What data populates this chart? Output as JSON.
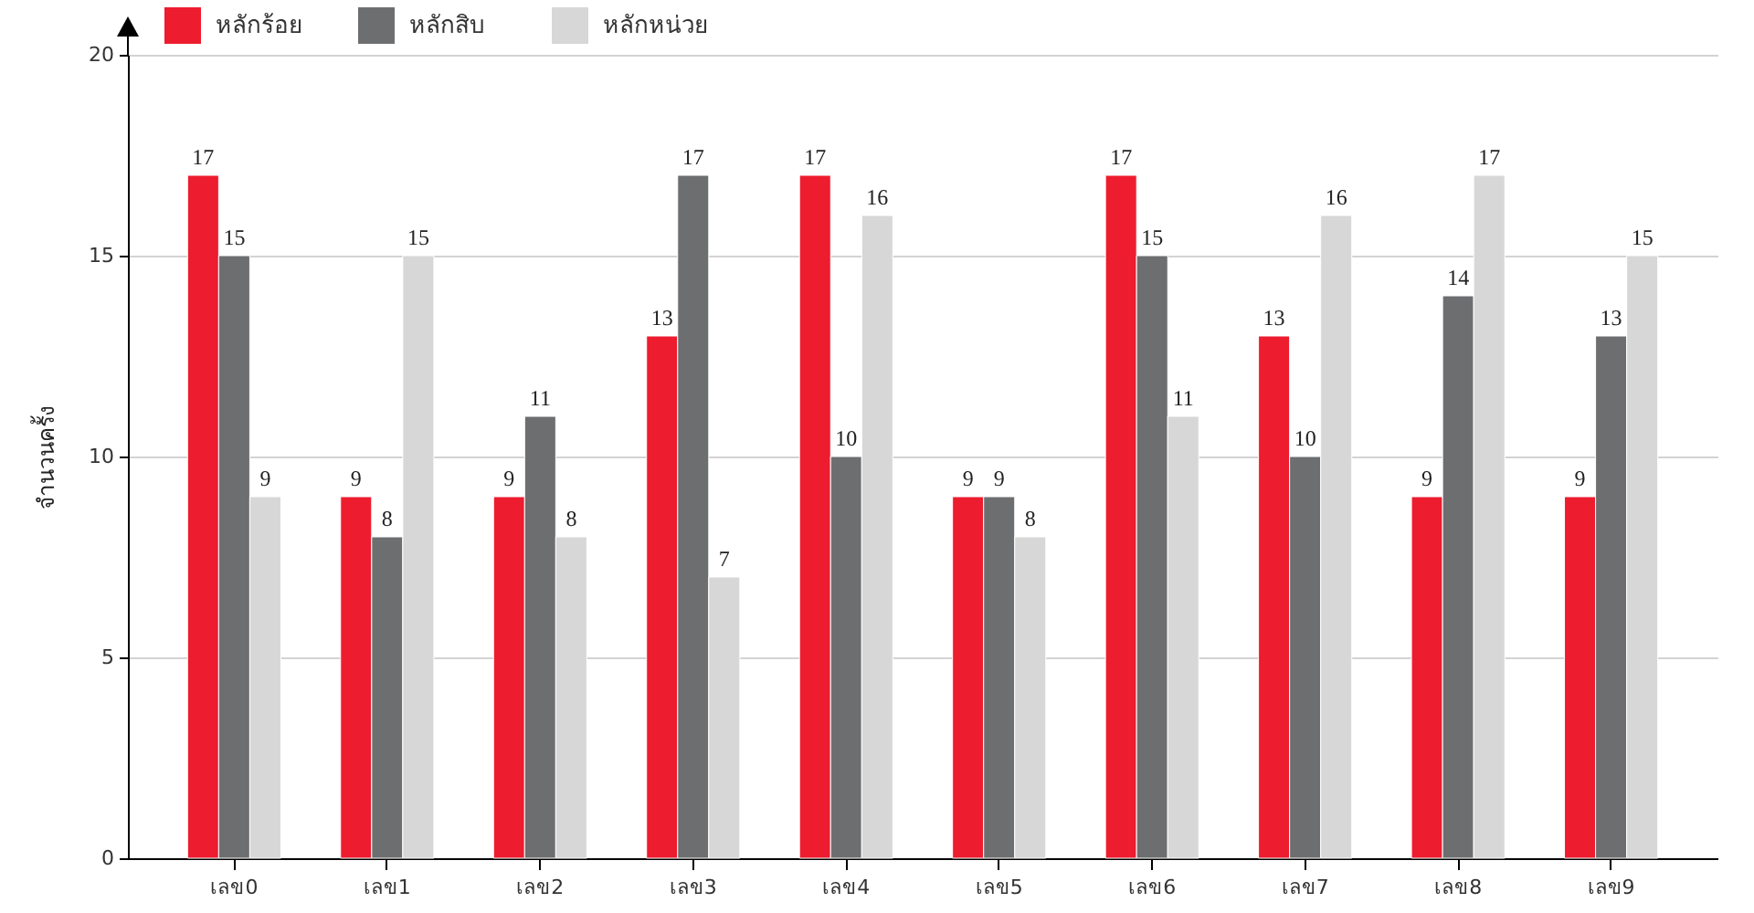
{
  "chart_data": {
    "type": "bar",
    "ylabel": "จำนวนครั้ง",
    "categories": [
      "เลข0",
      "เลข1",
      "เลข2",
      "เลข3",
      "เลข4",
      "เลข5",
      "เลข6",
      "เลข7",
      "เลข8",
      "เลข9"
    ],
    "series": [
      {
        "name": "หลักร้อย",
        "color": "#ed1c2e",
        "values": [
          17,
          9,
          9,
          13,
          17,
          9,
          17,
          13,
          9,
          9
        ]
      },
      {
        "name": "หลักสิบ",
        "color": "#6d6e70",
        "values": [
          15,
          8,
          11,
          17,
          10,
          9,
          15,
          10,
          14,
          13
        ]
      },
      {
        "name": "หลักหน่วย",
        "color": "#d7d7d7",
        "values": [
          9,
          15,
          8,
          7,
          16,
          8,
          11,
          16,
          17,
          15
        ]
      }
    ],
    "ylim": [
      0,
      20
    ],
    "yticks": [
      0,
      5,
      10,
      15,
      20
    ],
    "grid": "y",
    "legend": "top left",
    "data_labels": true
  }
}
